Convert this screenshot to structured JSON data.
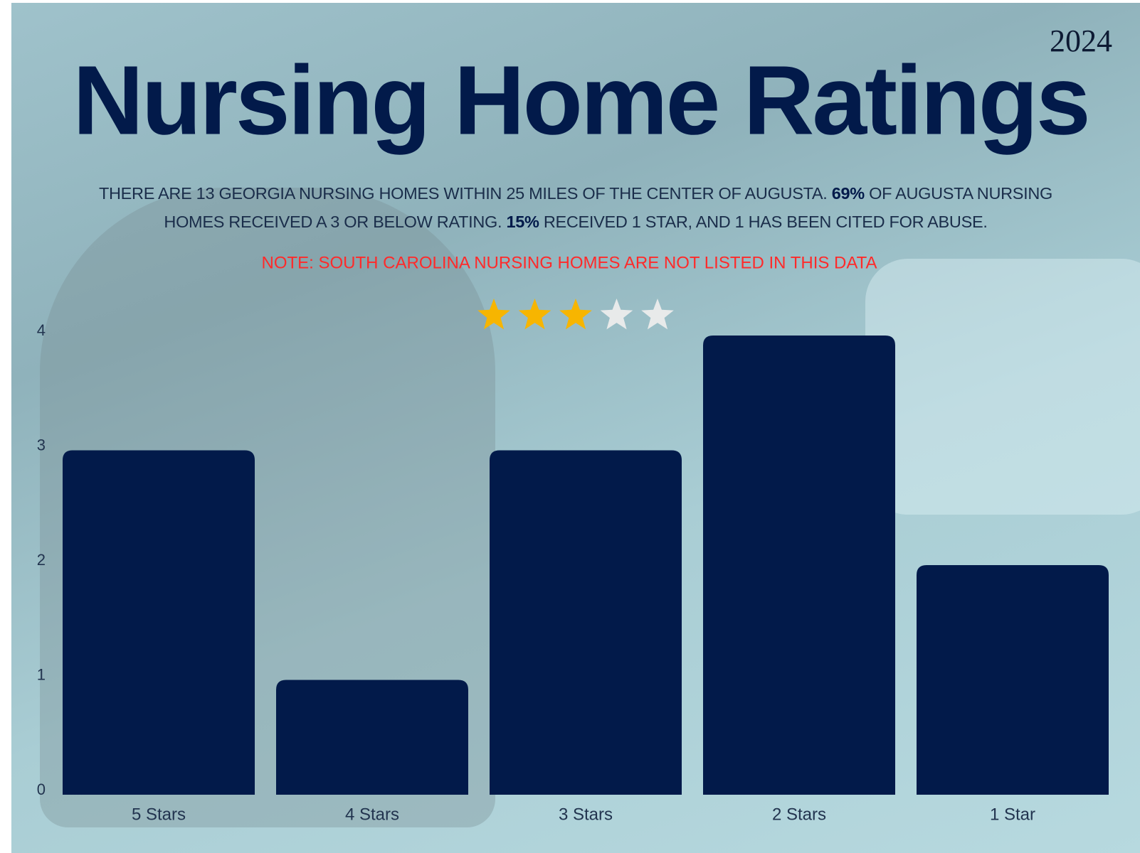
{
  "year": "2024",
  "chart_data": {
    "type": "bar",
    "title": "Nursing Home Ratings",
    "subtitle_lines": [
      [
        {
          "text": "THERE ARE 13 GEORGIA NURSING HOMES WITHIN 25 MILES OF THE CENTER OF AUGUSTA. ",
          "bold": false
        },
        {
          "text": "69%",
          "bold": true
        },
        {
          "text": " OF AUGUSTA NURSING",
          "bold": false
        }
      ],
      [
        {
          "text": "HOMES RECEIVED A 3 OR BELOW RATING. ",
          "bold": false
        },
        {
          "text": "15%",
          "bold": true
        },
        {
          "text": " RECEIVED 1 STAR, AND 1 HAS BEEN CITED FOR ABUSE.",
          "bold": false
        }
      ]
    ],
    "note": "NOTE: SOUTH CAROLINA NURSING HOMES ARE NOT LISTED IN THIS DATA",
    "rating": 3,
    "rating_max": 5,
    "categories": [
      "5 Stars",
      "4 Stars",
      "3 Stars",
      "2 Stars",
      "1 Star"
    ],
    "values": [
      3,
      1,
      3,
      4,
      2
    ],
    "color": "#021a4a",
    "ylim": [
      0,
      4
    ],
    "yticks": [
      0,
      1,
      2,
      3,
      4
    ],
    "grid": false
  }
}
